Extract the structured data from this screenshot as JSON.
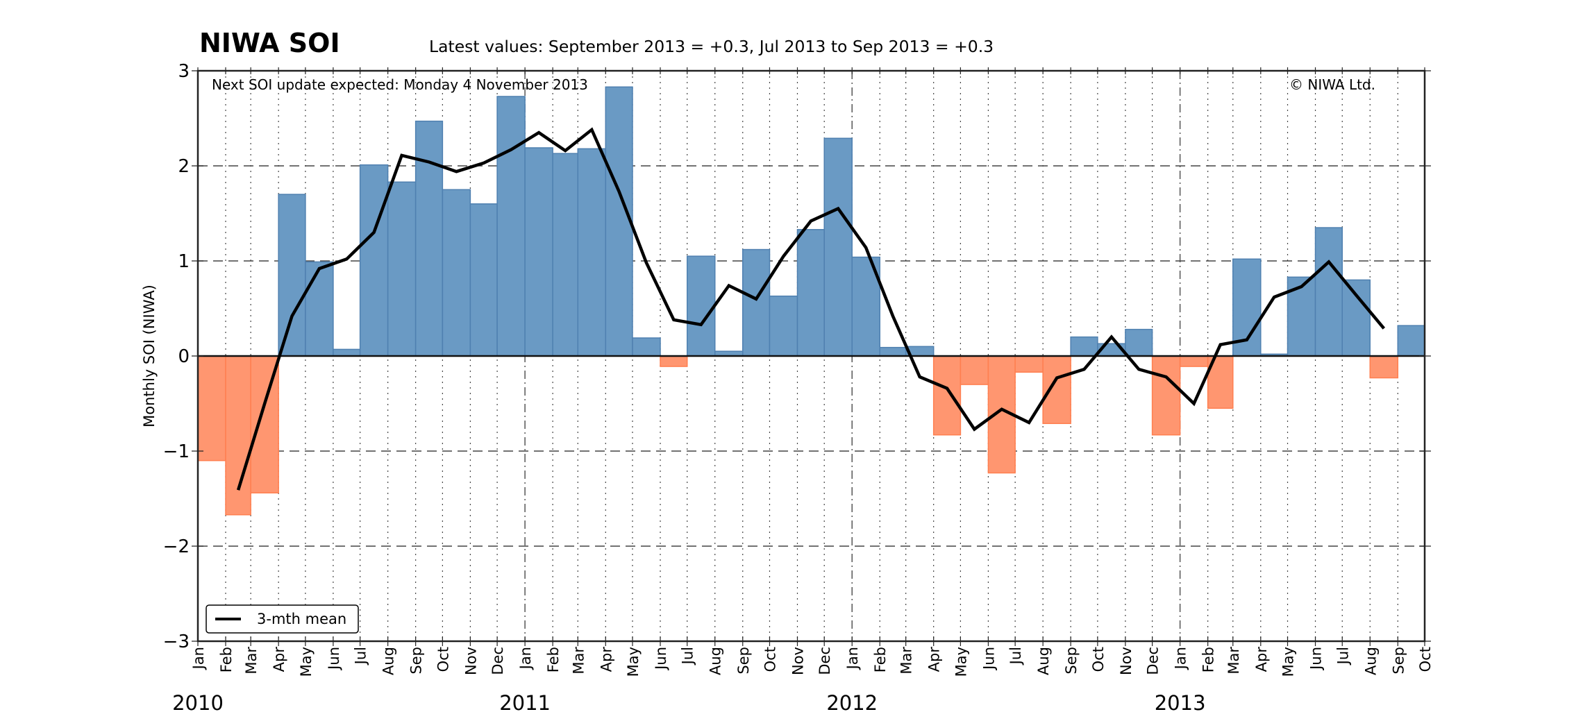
{
  "chart_data": {
    "type": "bar",
    "title": "NIWA SOI",
    "subtitle": "Latest values: September 2013 = +0.3, Jul 2013 to Sep 2013 = +0.3",
    "note": "Next SOI update expected: Monday 4 November 2013",
    "copyright": "© NIWA Ltd.",
    "ylabel": "Monthly SOI (NIWA)",
    "xlabel": "",
    "ylim": [
      -3,
      3
    ],
    "yticks": [
      3,
      2,
      1,
      0,
      -1,
      -2,
      -3
    ],
    "ytick_labels": [
      "3",
      "2",
      "1",
      "0",
      "−1",
      "−2",
      "−3"
    ],
    "grid": true,
    "start": {
      "year": 2010,
      "month": 1
    },
    "end_tick": {
      "year": 2013,
      "month": 10
    },
    "month_labels": [
      "Jan",
      "Feb",
      "Mar",
      "Apr",
      "May",
      "Jun",
      "Jul",
      "Aug",
      "Sep",
      "Oct",
      "Nov",
      "Dec"
    ],
    "year_labels": [
      "2010",
      "2011",
      "2012",
      "2013"
    ],
    "colors": {
      "positive": "#6a9ac4",
      "positive_edge": "#4f80b0",
      "negative": "#ff9670",
      "negative_edge": "#ff7f50",
      "line": "#000000"
    },
    "series": [
      {
        "name": "Monthly SOI",
        "kind": "bar",
        "start": {
          "year": 2010,
          "month": 1
        },
        "values": [
          -1.1,
          -1.67,
          -1.44,
          1.7,
          0.99,
          0.07,
          2.01,
          1.83,
          2.47,
          1.75,
          1.6,
          2.73,
          2.19,
          2.13,
          2.18,
          2.83,
          0.19,
          -0.11,
          1.05,
          0.05,
          1.12,
          0.63,
          1.33,
          2.29,
          1.04,
          0.09,
          0.1,
          -0.83,
          -0.3,
          -1.23,
          -0.17,
          -0.71,
          0.2,
          0.13,
          0.28,
          -0.83,
          -0.11,
          -0.55,
          1.02,
          0.02,
          0.83,
          1.35,
          0.8,
          -0.23,
          0.32
        ]
      },
      {
        "name": "3-mth mean",
        "kind": "line",
        "start": {
          "year": 2010,
          "month": 2
        },
        "values": [
          -1.41,
          -0.5,
          0.42,
          0.92,
          1.02,
          1.3,
          2.11,
          2.04,
          1.94,
          2.03,
          2.17,
          2.35,
          2.16,
          2.38,
          1.73,
          0.98,
          0.38,
          0.33,
          0.74,
          0.6,
          1.05,
          1.42,
          1.55,
          1.14,
          0.42,
          -0.22,
          -0.34,
          -0.77,
          -0.56,
          -0.7,
          -0.23,
          -0.14,
          0.2,
          -0.14,
          -0.22,
          -0.5,
          0.12,
          0.17,
          0.62,
          0.73,
          0.99,
          0.64,
          0.29
        ]
      }
    ],
    "legend": {
      "label": "3-mth mean",
      "placement": "lower-left"
    }
  }
}
